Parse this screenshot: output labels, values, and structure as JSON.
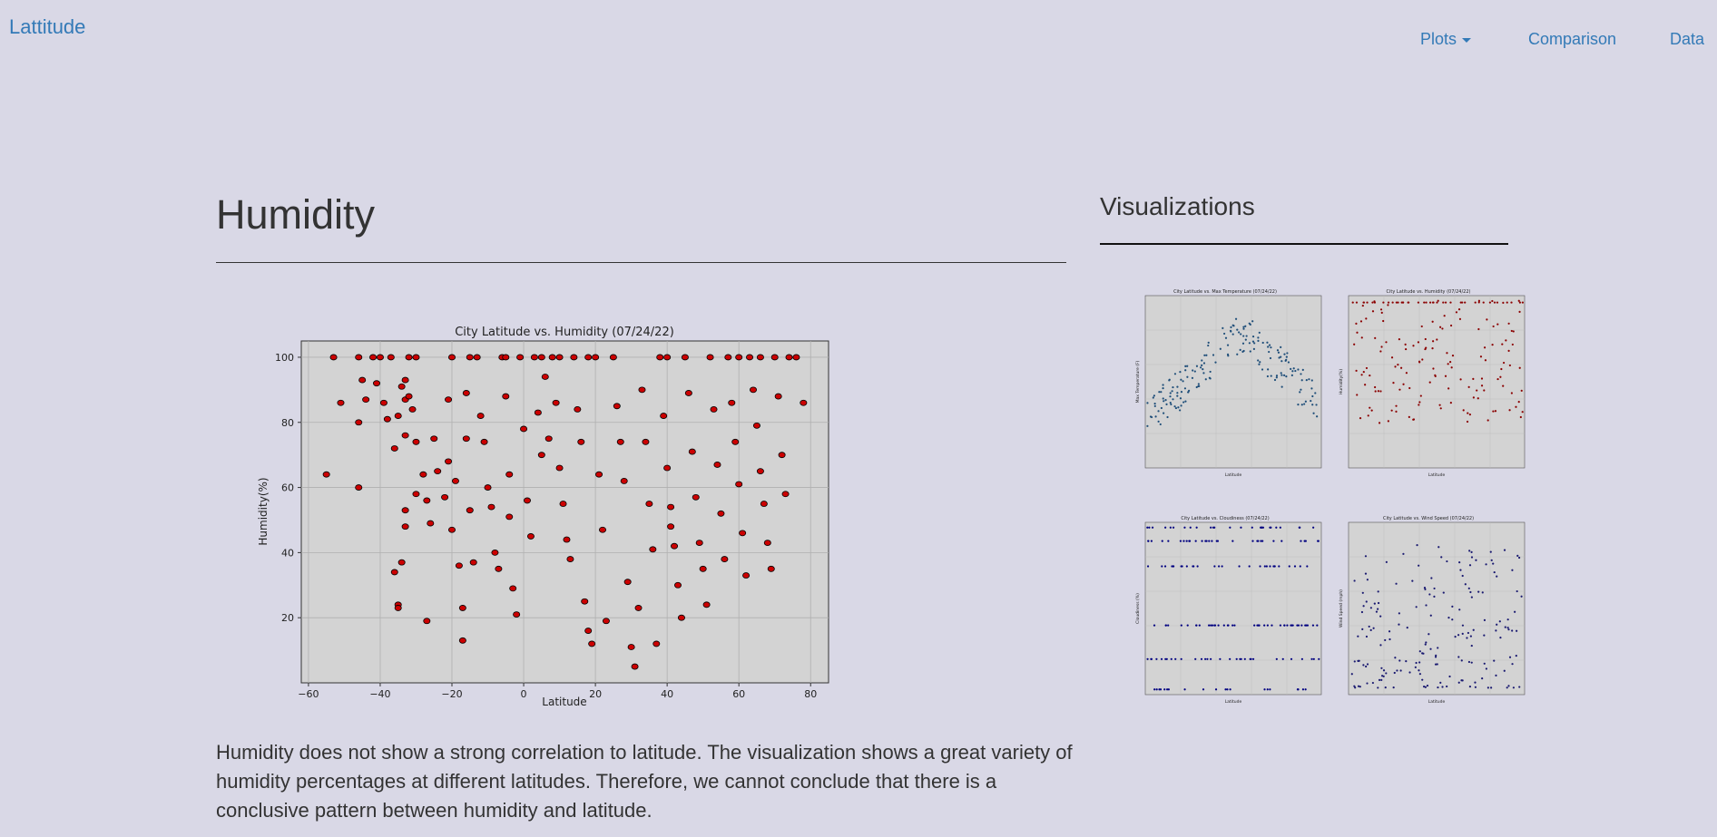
{
  "navbar": {
    "brand": "Lattitude",
    "items": [
      {
        "label": "Plots",
        "dropdown": true
      },
      {
        "label": "Comparison"
      },
      {
        "label": "Data"
      }
    ]
  },
  "main": {
    "title": "Humidity",
    "description": "Humidity does not show a strong correlation to latitude. The visualization shows a great variety of humidity percentages at different latitudes. Therefore, we cannot conclude that there is a conclusive pattern between humidity and latitude."
  },
  "sidebar": {
    "title": "Visualizations",
    "thumbnails": [
      {
        "title": "City Latitude vs. Max Temperature (07/24/22)",
        "ylabel": "Max Temperature (F)",
        "xlabel": "Latitude",
        "color": "#1f4e79"
      },
      {
        "title": "City Latitude vs. Humidity (07/24/22)",
        "ylabel": "Humidity(%)",
        "xlabel": "Latitude",
        "color": "#8b0000"
      },
      {
        "title": "City Latitude vs. Cloudiness (07/24/22)",
        "ylabel": "Cloudiness (%)",
        "xlabel": "Latitude",
        "color": "#000080"
      },
      {
        "title": "City Latitude vs. Wind Speed (07/24/22)",
        "ylabel": "Wind Speed (mph)",
        "xlabel": "Latitude",
        "color": "#191970"
      }
    ]
  },
  "chart_data": {
    "type": "scatter",
    "title": "City Latitude vs. Humidity (07/24/22)",
    "xlabel": "Latitude",
    "ylabel": "Humidity(%)",
    "xlim": [
      -62,
      85
    ],
    "ylim": [
      0,
      105
    ],
    "xticks": [
      -60,
      -40,
      -20,
      0,
      20,
      40,
      60,
      80
    ],
    "yticks": [
      20,
      40,
      60,
      80,
      100
    ],
    "grid": true,
    "point_color": "#cc0000",
    "point_edge": "#000000",
    "background": "#d3d3d3",
    "points": [
      [
        -55,
        64
      ],
      [
        -53,
        100
      ],
      [
        -51,
        86
      ],
      [
        -46,
        100
      ],
      [
        -45,
        93
      ],
      [
        -46,
        80
      ],
      [
        -46,
        60
      ],
      [
        -44,
        87
      ],
      [
        -42,
        100
      ],
      [
        -41,
        92
      ],
      [
        -40,
        100
      ],
      [
        -39,
        86
      ],
      [
        -38,
        81
      ],
      [
        -37,
        100
      ],
      [
        -36,
        72
      ],
      [
        -35,
        82
      ],
      [
        -34,
        91
      ],
      [
        -33,
        93
      ],
      [
        -33,
        87
      ],
      [
        -33,
        76
      ],
      [
        -32,
        100
      ],
      [
        -32,
        88
      ],
      [
        -33,
        53
      ],
      [
        -33,
        48
      ],
      [
        -34,
        37
      ],
      [
        -35,
        24
      ],
      [
        -35,
        23
      ],
      [
        -30,
        58
      ],
      [
        -31,
        84
      ],
      [
        -30,
        74
      ],
      [
        -28,
        64
      ],
      [
        -27,
        56
      ],
      [
        -27,
        19
      ],
      [
        -26,
        49
      ],
      [
        -25,
        75
      ],
      [
        -24,
        65
      ],
      [
        -22,
        57
      ],
      [
        -20,
        100
      ],
      [
        -21,
        87
      ],
      [
        -21,
        68
      ],
      [
        -19,
        62
      ],
      [
        -20,
        47
      ],
      [
        -18,
        36
      ],
      [
        -17,
        23
      ],
      [
        -17,
        13
      ],
      [
        -16,
        89
      ],
      [
        -16,
        75
      ],
      [
        -15,
        53
      ],
      [
        -14,
        37
      ],
      [
        -13,
        100
      ],
      [
        -12,
        82
      ],
      [
        -11,
        74
      ],
      [
        -10,
        60
      ],
      [
        -9,
        54
      ],
      [
        -8,
        40
      ],
      [
        -7,
        35
      ],
      [
        -6,
        100
      ],
      [
        -5,
        88
      ],
      [
        -4,
        64
      ],
      [
        -4,
        51
      ],
      [
        -3,
        29
      ],
      [
        -2,
        21
      ],
      [
        -1,
        100
      ],
      [
        0,
        78
      ],
      [
        1,
        56
      ],
      [
        2,
        45
      ],
      [
        3,
        100
      ],
      [
        4,
        83
      ],
      [
        5,
        70
      ],
      [
        6,
        94
      ],
      [
        7,
        75
      ],
      [
        8,
        100
      ],
      [
        9,
        86
      ],
      [
        10,
        66
      ],
      [
        11,
        55
      ],
      [
        12,
        44
      ],
      [
        13,
        38
      ],
      [
        14,
        100
      ],
      [
        15,
        84
      ],
      [
        16,
        74
      ],
      [
        17,
        25
      ],
      [
        18,
        16
      ],
      [
        19,
        12
      ],
      [
        20,
        100
      ],
      [
        21,
        64
      ],
      [
        22,
        47
      ],
      [
        23,
        19
      ],
      [
        25,
        100
      ],
      [
        26,
        85
      ],
      [
        27,
        74
      ],
      [
        28,
        62
      ],
      [
        29,
        31
      ],
      [
        30,
        11
      ],
      [
        31,
        5
      ],
      [
        32,
        23
      ],
      [
        33,
        90
      ],
      [
        34,
        74
      ],
      [
        35,
        55
      ],
      [
        36,
        41
      ],
      [
        37,
        12
      ],
      [
        38,
        100
      ],
      [
        39,
        82
      ],
      [
        40,
        66
      ],
      [
        41,
        54
      ],
      [
        42,
        42
      ],
      [
        43,
        30
      ],
      [
        44,
        20
      ],
      [
        45,
        100
      ],
      [
        46,
        89
      ],
      [
        47,
        71
      ],
      [
        48,
        57
      ],
      [
        49,
        43
      ],
      [
        50,
        35
      ],
      [
        51,
        24
      ],
      [
        52,
        100
      ],
      [
        53,
        84
      ],
      [
        54,
        67
      ],
      [
        55,
        52
      ],
      [
        56,
        38
      ],
      [
        57,
        100
      ],
      [
        58,
        86
      ],
      [
        59,
        74
      ],
      [
        60,
        61
      ],
      [
        61,
        46
      ],
      [
        62,
        33
      ],
      [
        63,
        100
      ],
      [
        64,
        90
      ],
      [
        65,
        79
      ],
      [
        66,
        65
      ],
      [
        67,
        55
      ],
      [
        68,
        43
      ],
      [
        69,
        35
      ],
      [
        70,
        100
      ],
      [
        71,
        88
      ],
      [
        72,
        70
      ],
      [
        73,
        58
      ],
      [
        74,
        100
      ],
      [
        76,
        100
      ],
      [
        78,
        86
      ],
      [
        -36,
        34
      ],
      [
        -30,
        100
      ],
      [
        -15,
        100
      ],
      [
        -5,
        100
      ],
      [
        5,
        100
      ],
      [
        10,
        100
      ],
      [
        18,
        100
      ],
      [
        40,
        100
      ],
      [
        60,
        100
      ],
      [
        66,
        100
      ],
      [
        41,
        48
      ]
    ]
  }
}
